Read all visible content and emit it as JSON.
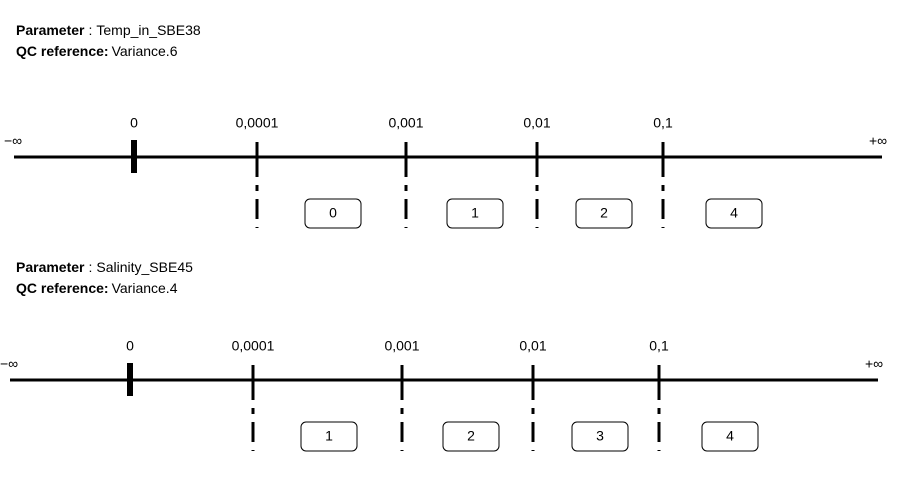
{
  "sections": [
    {
      "parameter": {
        "label": "Parameter",
        "separator": ":",
        "value": "Temp_in_SBE38"
      },
      "qc_reference": {
        "label": "QC reference:",
        "value": "Variance.6"
      },
      "axis": {
        "minus_infinity": "−∞",
        "plus_infinity": "+∞",
        "ticks": [
          "0",
          "0,0001",
          "0,001",
          "0,01",
          "0,1"
        ],
        "flags": [
          "0",
          "1",
          "2",
          "4"
        ]
      }
    },
    {
      "parameter": {
        "label": "Parameter",
        "separator": ":",
        "value": "Salinity_SBE45"
      },
      "qc_reference": {
        "label": "QC reference:",
        "value": "Variance.4"
      },
      "axis": {
        "minus_infinity": "−∞",
        "plus_infinity": "+∞",
        "ticks": [
          "0",
          "0,0001",
          "0,001",
          "0,01",
          "0,1"
        ],
        "flags": [
          "1",
          "2",
          "3",
          "4"
        ]
      }
    }
  ]
}
